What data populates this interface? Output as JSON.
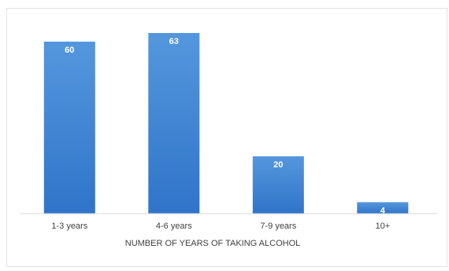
{
  "chart_data": {
    "type": "bar",
    "categories": [
      "1-3 years",
      "4-6 years",
      "7-9 years",
      "10+"
    ],
    "values": [
      60,
      63,
      20,
      4
    ],
    "xlabel": "NUMBER OF YEARS OF TAKING ALCOHOL",
    "ylabel": "",
    "ylim": [
      0,
      63
    ],
    "grid": false,
    "legend": "none",
    "bar_color": "#4a8fd6",
    "bar_color_dark": "#2f6fbd",
    "label_color": "#ffffff",
    "text_color": "#404040",
    "axis_color": "#d9d9d9"
  }
}
